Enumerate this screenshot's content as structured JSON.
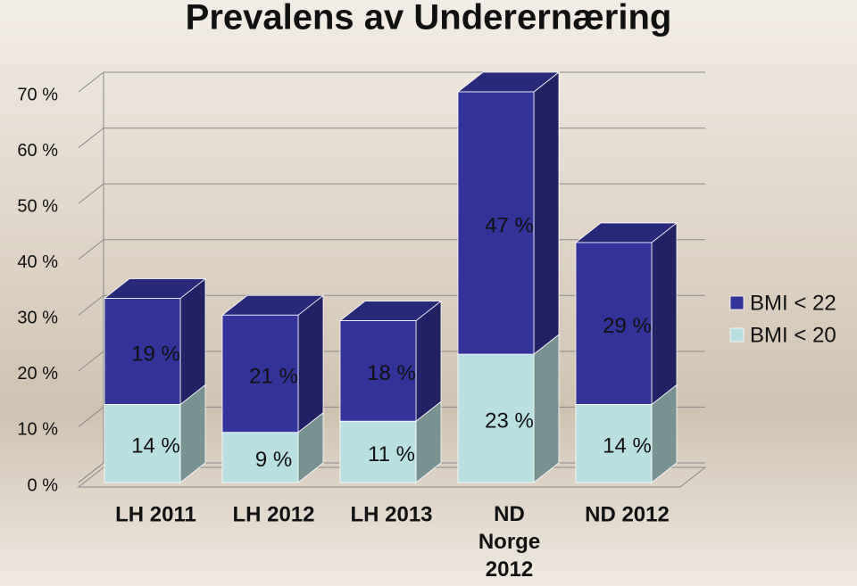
{
  "chart_data": {
    "type": "bar3d_stacked",
    "title": "Prevalens av Underernæring",
    "categories": [
      "LH 2011",
      "LH 2012",
      "LH 2013",
      "ND Norge 2012",
      "ND 2012"
    ],
    "series": [
      {
        "name": "BMI < 20",
        "color": "#b8e0e0",
        "values": [
          14,
          9,
          11,
          23,
          14
        ],
        "value_labels": [
          "14 %",
          "9 %",
          "11 %",
          "23 %",
          "14 %"
        ]
      },
      {
        "name": "BMI < 22",
        "color": "#333399",
        "values": [
          19,
          21,
          18,
          47,
          29
        ],
        "value_labels": [
          "19 %",
          "21 %",
          "18 %",
          "47 %",
          "29 %"
        ]
      }
    ],
    "ylim": [
      0,
      70
    ],
    "yticks": [
      {
        "value": 0,
        "label": "0 %"
      },
      {
        "value": 10,
        "label": "10 %"
      },
      {
        "value": 20,
        "label": "20 %"
      },
      {
        "value": 30,
        "label": "30 %"
      },
      {
        "value": 40,
        "label": "40 %"
      },
      {
        "value": 50,
        "label": "50 %"
      },
      {
        "value": 60,
        "label": "60 %"
      },
      {
        "value": 70,
        "label": "70 %"
      }
    ],
    "grid": true,
    "legend": "right"
  }
}
